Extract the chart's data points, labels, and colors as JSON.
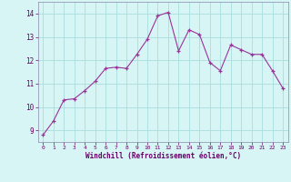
{
  "x": [
    0,
    1,
    2,
    3,
    4,
    5,
    6,
    7,
    8,
    9,
    10,
    11,
    12,
    13,
    14,
    15,
    16,
    17,
    18,
    19,
    20,
    21,
    22,
    23
  ],
  "y": [
    8.8,
    9.4,
    10.3,
    10.35,
    10.7,
    11.1,
    11.65,
    11.7,
    11.65,
    12.25,
    12.9,
    13.9,
    14.05,
    12.4,
    13.3,
    13.1,
    11.9,
    11.55,
    12.65,
    12.45,
    12.25,
    12.25,
    11.55,
    10.8
  ],
  "xlabel": "Windchill (Refroidissement éolien,°C)",
  "line_color": "#993399",
  "marker_color": "#993399",
  "bg_color": "#d8f5f5",
  "grid_color": "#aadddd",
  "ylim": [
    8.5,
    14.5
  ],
  "xlim": [
    -0.5,
    23.5
  ],
  "yticks": [
    9,
    10,
    11,
    12,
    13,
    14
  ],
  "xticks": [
    0,
    1,
    2,
    3,
    4,
    5,
    6,
    7,
    8,
    9,
    10,
    11,
    12,
    13,
    14,
    15,
    16,
    17,
    18,
    19,
    20,
    21,
    22,
    23
  ],
  "spine_color": "#8888aa",
  "tick_color": "#660066",
  "xlabel_color": "#660066"
}
